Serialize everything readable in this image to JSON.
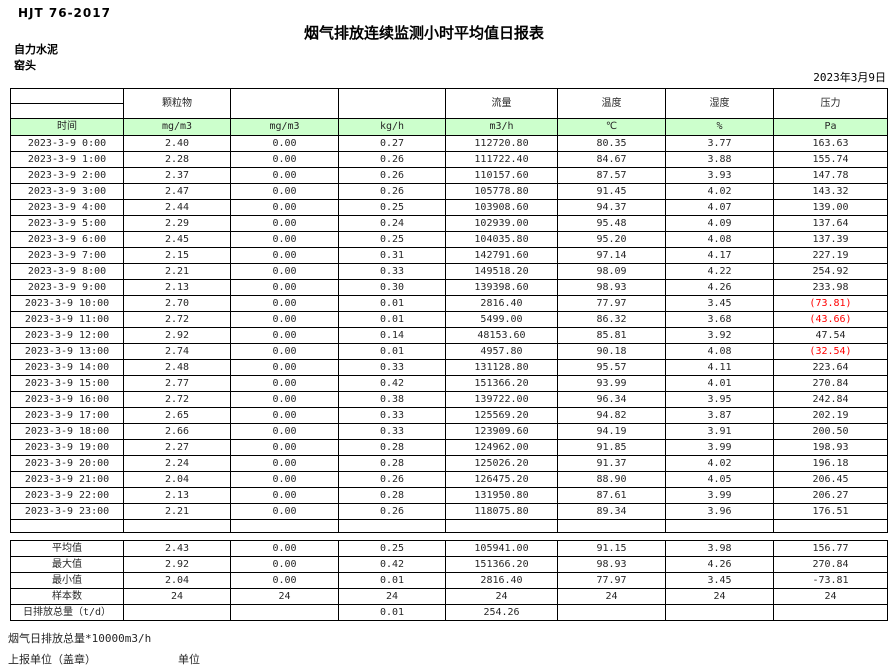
{
  "page": {
    "doc_code": "HJT  76-2017",
    "title": "烟气排放连续监测小时平均值日报表",
    "company": "自力水泥",
    "station": "窑头",
    "date": "2023年3月9日"
  },
  "table": {
    "group_headers": [
      "颗粒物",
      "",
      "",
      "流量",
      "温度",
      "湿度",
      "压力"
    ],
    "unit_headers": [
      "时间",
      "mg/m3",
      "mg/m3",
      "kg/h",
      "m3/h",
      "℃",
      "%",
      "Pa"
    ],
    "rows": [
      {
        "time": "2023-3-9 0:00",
        "values": [
          "2.40",
          "0.00",
          "0.27",
          "112720.80",
          "80.35",
          "3.77",
          "163.63"
        ]
      },
      {
        "time": "2023-3-9 1:00",
        "values": [
          "2.28",
          "0.00",
          "0.26",
          "111722.40",
          "84.67",
          "3.88",
          "155.74"
        ]
      },
      {
        "time": "2023-3-9 2:00",
        "values": [
          "2.37",
          "0.00",
          "0.26",
          "110157.60",
          "87.57",
          "3.93",
          "147.78"
        ]
      },
      {
        "time": "2023-3-9 3:00",
        "values": [
          "2.47",
          "0.00",
          "0.26",
          "105778.80",
          "91.45",
          "4.02",
          "143.32"
        ]
      },
      {
        "time": "2023-3-9 4:00",
        "values": [
          "2.44",
          "0.00",
          "0.25",
          "103908.60",
          "94.37",
          "4.07",
          "139.00"
        ]
      },
      {
        "time": "2023-3-9 5:00",
        "values": [
          "2.29",
          "0.00",
          "0.24",
          "102939.00",
          "95.48",
          "4.09",
          "137.64"
        ]
      },
      {
        "time": "2023-3-9 6:00",
        "values": [
          "2.45",
          "0.00",
          "0.25",
          "104035.80",
          "95.20",
          "4.08",
          "137.39"
        ]
      },
      {
        "time": "2023-3-9 7:00",
        "values": [
          "2.15",
          "0.00",
          "0.31",
          "142791.60",
          "97.14",
          "4.17",
          "227.19"
        ]
      },
      {
        "time": "2023-3-9 8:00",
        "values": [
          "2.21",
          "0.00",
          "0.33",
          "149518.20",
          "98.09",
          "4.22",
          "254.92"
        ]
      },
      {
        "time": "2023-3-9 9:00",
        "values": [
          "2.13",
          "0.00",
          "0.30",
          "139398.60",
          "98.93",
          "4.26",
          "233.98"
        ]
      },
      {
        "time": "2023-3-9 10:00",
        "values": [
          "2.70",
          "0.00",
          "0.01",
          "2816.40",
          "77.97",
          "3.45",
          "(73.81)"
        ]
      },
      {
        "time": "2023-3-9 11:00",
        "values": [
          "2.72",
          "0.00",
          "0.01",
          "5499.00",
          "86.32",
          "3.68",
          "(43.66)"
        ]
      },
      {
        "time": "2023-3-9 12:00",
        "values": [
          "2.92",
          "0.00",
          "0.14",
          "48153.60",
          "85.81",
          "3.92",
          "47.54"
        ]
      },
      {
        "time": "2023-3-9 13:00",
        "values": [
          "2.74",
          "0.00",
          "0.01",
          "4957.80",
          "90.18",
          "4.08",
          "(32.54)"
        ]
      },
      {
        "time": "2023-3-9 14:00",
        "values": [
          "2.48",
          "0.00",
          "0.33",
          "131128.80",
          "95.57",
          "4.11",
          "223.64"
        ]
      },
      {
        "time": "2023-3-9 15:00",
        "values": [
          "2.77",
          "0.00",
          "0.42",
          "151366.20",
          "93.99",
          "4.01",
          "270.84"
        ]
      },
      {
        "time": "2023-3-9 16:00",
        "values": [
          "2.72",
          "0.00",
          "0.38",
          "139722.00",
          "96.34",
          "3.95",
          "242.84"
        ]
      },
      {
        "time": "2023-3-9 17:00",
        "values": [
          "2.65",
          "0.00",
          "0.33",
          "125569.20",
          "94.82",
          "3.87",
          "202.19"
        ]
      },
      {
        "time": "2023-3-9 18:00",
        "values": [
          "2.66",
          "0.00",
          "0.33",
          "123909.60",
          "94.19",
          "3.91",
          "200.50"
        ]
      },
      {
        "time": "2023-3-9 19:00",
        "values": [
          "2.27",
          "0.00",
          "0.28",
          "124962.00",
          "91.85",
          "3.99",
          "198.93"
        ]
      },
      {
        "time": "2023-3-9 20:00",
        "values": [
          "2.24",
          "0.00",
          "0.28",
          "125026.20",
          "91.37",
          "4.02",
          "196.18"
        ]
      },
      {
        "time": "2023-3-9 21:00",
        "values": [
          "2.04",
          "0.00",
          "0.26",
          "126475.20",
          "88.90",
          "4.05",
          "206.45"
        ]
      },
      {
        "time": "2023-3-9 22:00",
        "values": [
          "2.13",
          "0.00",
          "0.28",
          "131950.80",
          "87.61",
          "3.99",
          "206.27"
        ]
      },
      {
        "time": "2023-3-9 23:00",
        "values": [
          "2.21",
          "0.00",
          "0.26",
          "118075.80",
          "89.34",
          "3.96",
          "176.51"
        ]
      }
    ],
    "summary": [
      {
        "label": "平均值",
        "values": [
          "2.43",
          "0.00",
          "0.25",
          "105941.00",
          "91.15",
          "3.98",
          "156.77"
        ]
      },
      {
        "label": "最大值",
        "values": [
          "2.92",
          "0.00",
          "0.42",
          "151366.20",
          "98.93",
          "4.26",
          "270.84"
        ]
      },
      {
        "label": "最小值",
        "values": [
          "2.04",
          "0.00",
          "0.01",
          "2816.40",
          "77.97",
          "3.45",
          "-73.81"
        ]
      },
      {
        "label": "样本数",
        "values": [
          "24",
          "24",
          "24",
          "24",
          "24",
          "24",
          "24"
        ]
      },
      {
        "label": "日排放总量（t/d）",
        "values": [
          "",
          "",
          "0.01",
          "254.26",
          "",
          "",
          ""
        ]
      }
    ]
  },
  "footer": {
    "note": "烟气日排放总量*10000m3/h",
    "report_unit_label": "上报单位（盖章）",
    "unit_label": "单位"
  },
  "colors": {
    "header_green": "#CCFFCC",
    "negative_red": "#FF0000"
  }
}
